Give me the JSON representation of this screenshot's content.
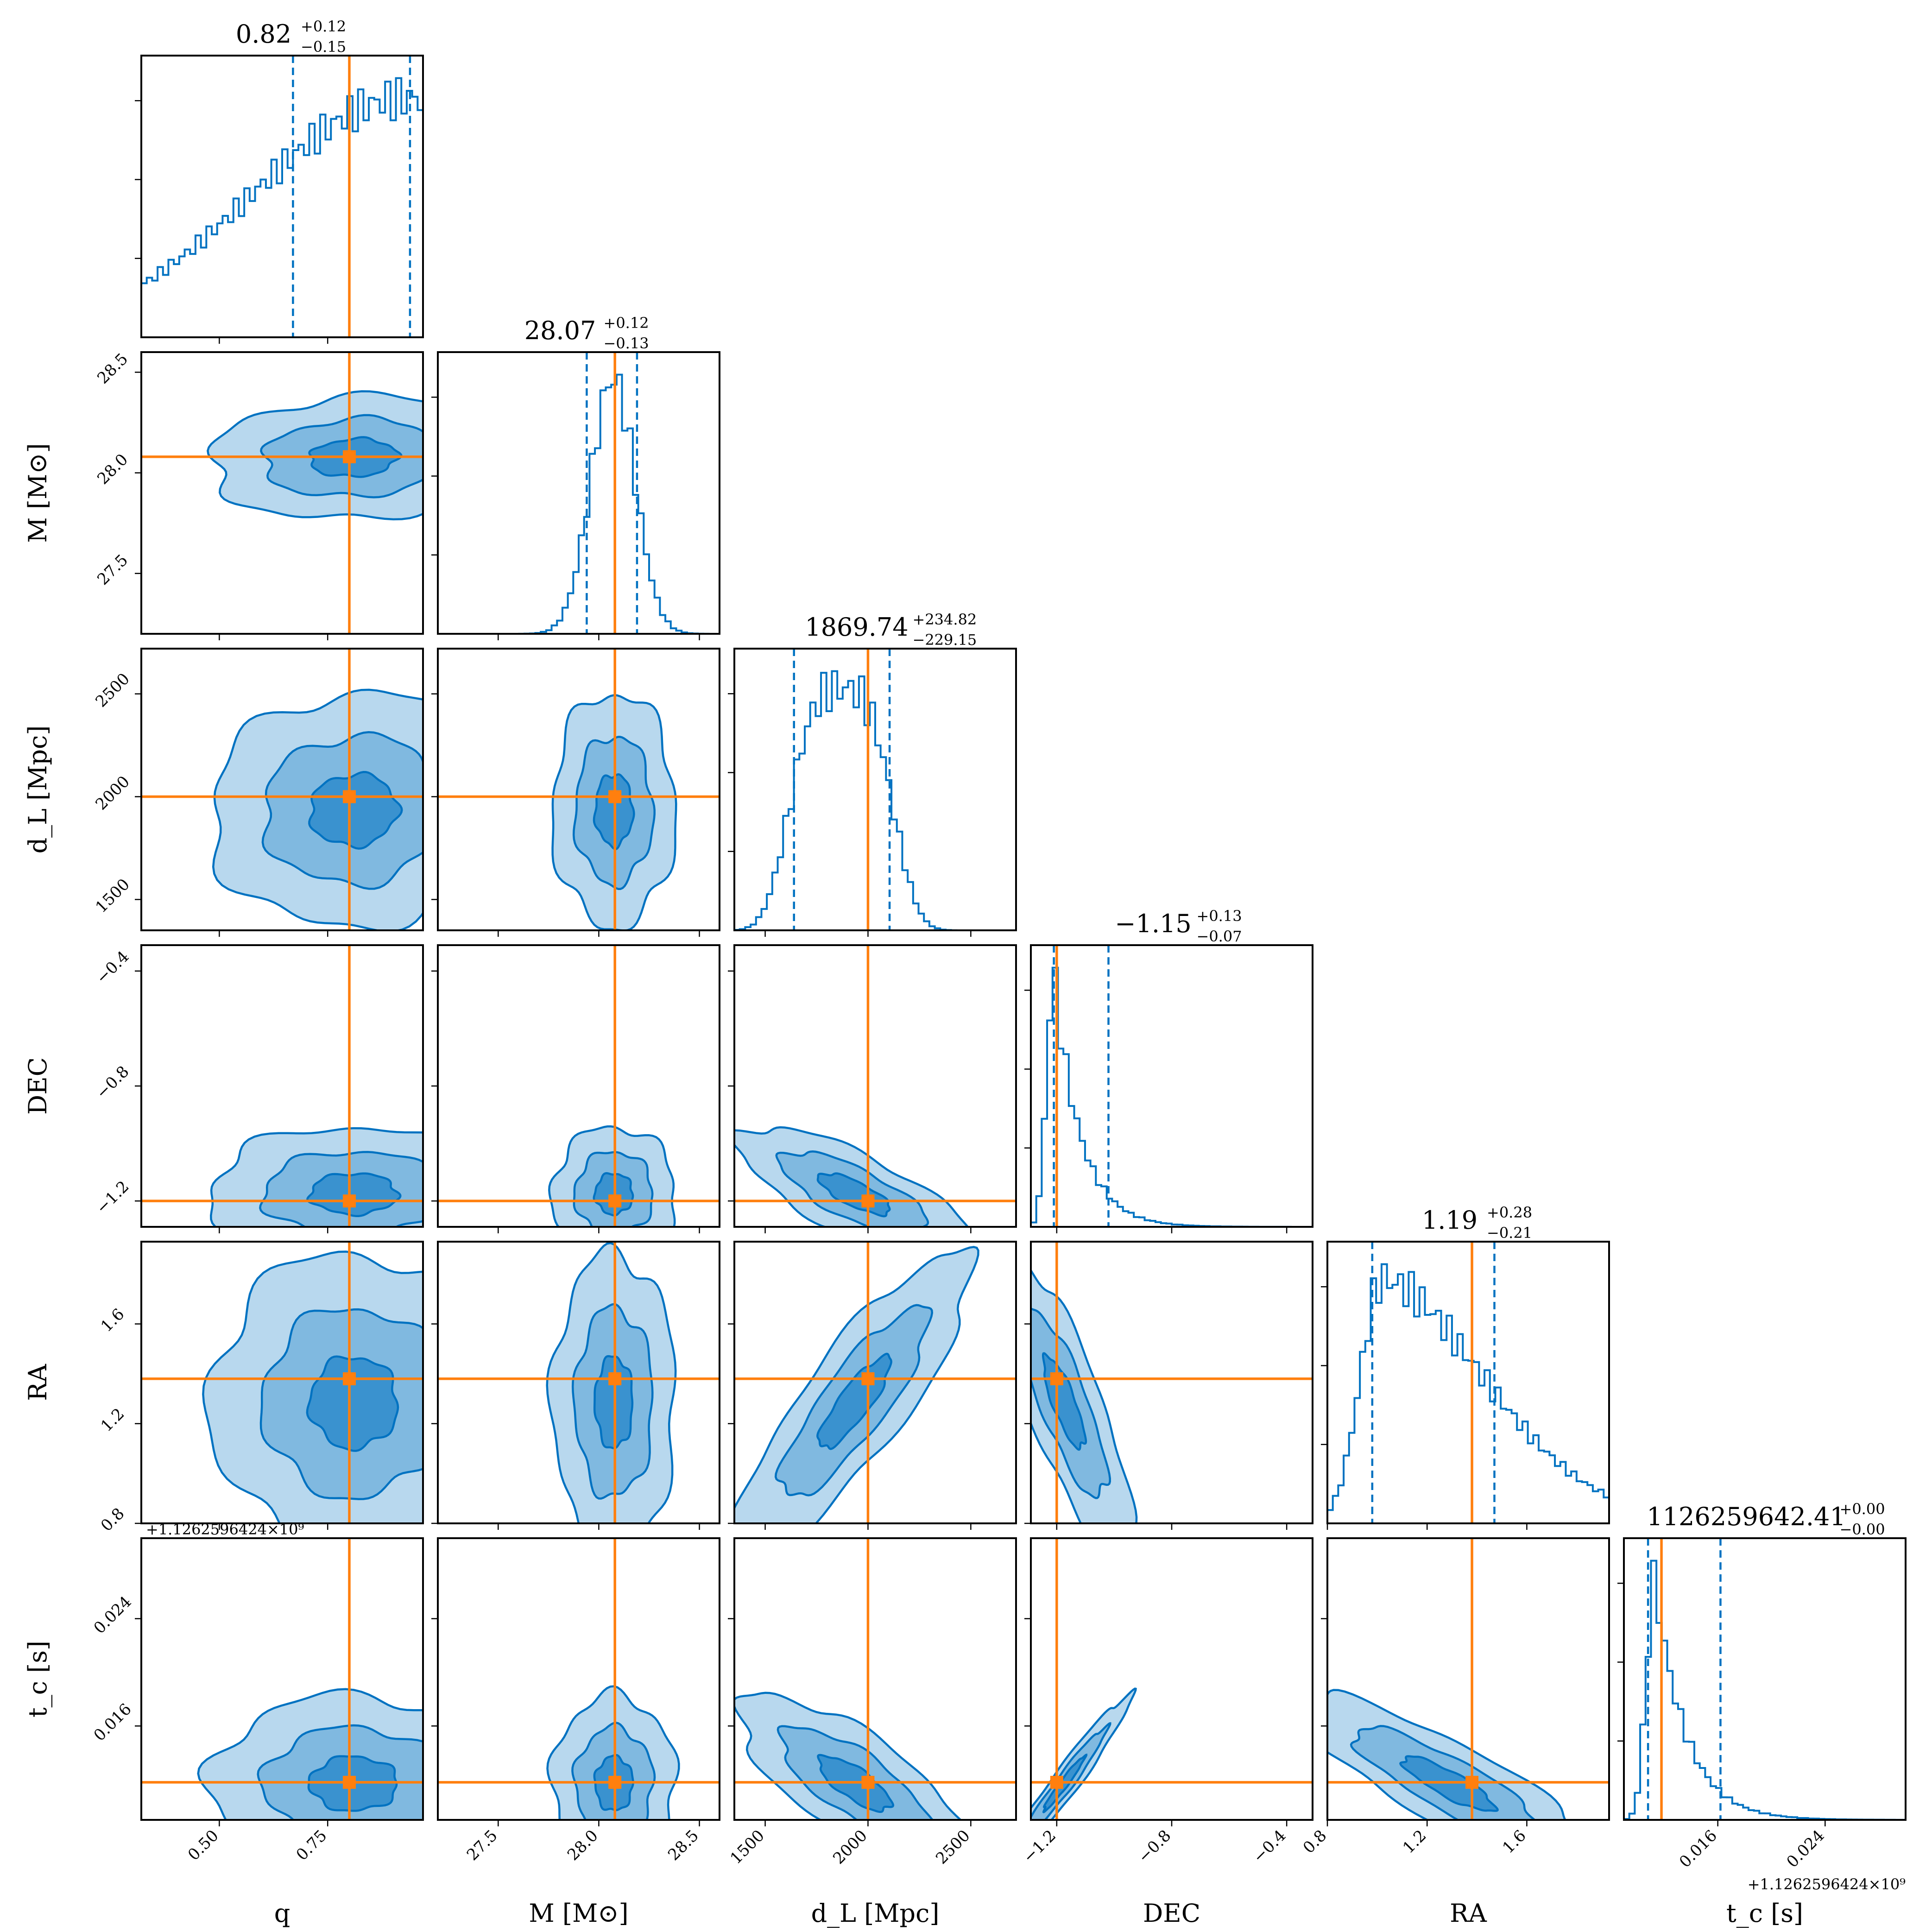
{
  "chart_data": {
    "type": "corner",
    "params": [
      {
        "key": "q",
        "label": "q",
        "range": [
          0.32,
          0.97
        ],
        "ticks": [
          0.5,
          0.75
        ],
        "tick_labels": [
          "0.50",
          "0.75"
        ],
        "truth": 0.8,
        "median": 0.82,
        "lo": 0.67,
        "hi": 0.94,
        "title": "0.82 +0.12 −0.15",
        "hist_shape": "rising",
        "hist_center": 0.93,
        "hist_width": 0.35
      },
      {
        "key": "M",
        "label": "M [M⊙]",
        "range": [
          27.2,
          28.6
        ],
        "ticks": [
          27.5,
          28.0,
          28.5
        ],
        "tick_labels": [
          "27.5",
          "28.0",
          "28.5"
        ],
        "truth": 28.08,
        "median": 28.07,
        "lo": 27.94,
        "hi": 28.19,
        "title": "28.07 +0.12 −0.13",
        "hist_shape": "gauss",
        "hist_center": 28.07,
        "hist_width": 0.11
      },
      {
        "key": "dL",
        "label": "d_L [Mpc]",
        "range": [
          1350,
          2720
        ],
        "ticks": [
          1500,
          2000,
          2500
        ],
        "tick_labels": [
          "1500",
          "2000",
          "2500"
        ],
        "truth": 2000,
        "median": 1869.74,
        "lo": 1640,
        "hi": 2105,
        "title": "1869.74 +234.82 −229.15",
        "hist_shape": "plateau",
        "hist_center": 1870,
        "hist_width": 230
      },
      {
        "key": "DEC",
        "label": "DEC",
        "range": [
          -1.29,
          -0.31
        ],
        "ticks": [
          -1.2,
          -0.8,
          -0.4
        ],
        "tick_labels": [
          "−1.2",
          "−0.8",
          "−0.4"
        ],
        "truth": -1.2,
        "median": -1.15,
        "lo": -1.21,
        "hi": -1.02,
        "title": "−1.15 +0.13 −0.07",
        "hist_shape": "skew",
        "hist_center": -1.21,
        "hist_width": 0.1
      },
      {
        "key": "RA",
        "label": "RA",
        "range": [
          0.8,
          1.93
        ],
        "ticks": [
          0.8,
          1.2,
          1.6
        ],
        "tick_labels": [
          "0.8",
          "1.2",
          "1.6"
        ],
        "truth": 1.38,
        "median": 1.19,
        "lo": 0.98,
        "hi": 1.47,
        "title": "1.19 +0.28 −0.21",
        "hist_shape": "decay",
        "hist_center": 1.02,
        "hist_width": 0.4
      },
      {
        "key": "tc",
        "label": "t_c [s]",
        "range": [
          0.009,
          0.03
        ],
        "ticks": [
          0.016,
          0.024
        ],
        "tick_labels": [
          "0.016",
          "0.024"
        ],
        "truth": 0.0118,
        "median": 0.0116,
        "lo": 0.0108,
        "hi": 0.0162,
        "title": "1126259642.41 +0.00 −0.00",
        "hist_shape": "skew",
        "hist_center": 0.0113,
        "hist_width": 0.0025,
        "offset_text": "+1.126259642 4×10⁹"
      }
    ],
    "axis_labels": {
      "x": [
        "q",
        "M [M⊙]",
        "d_L [Mpc]",
        "DEC",
        "RA",
        "t_c [s]"
      ],
      "y": [
        "",
        "M [M⊙]",
        "d_L [Mpc]",
        "DEC",
        "RA",
        "t_c [s]"
      ]
    },
    "titles": {
      "q": {
        "main": "0.82",
        "plus": "+0.12",
        "minus": "−0.15"
      },
      "M": {
        "main": "28.07",
        "plus": "+0.12",
        "minus": "−0.13"
      },
      "dL": {
        "main": "1869.74",
        "plus": "+234.82",
        "minus": "−229.15"
      },
      "DEC": {
        "main": "−1.15",
        "plus": "+0.13",
        "minus": "−0.07"
      },
      "RA": {
        "main": "1.19",
        "plus": "+0.28",
        "minus": "−0.21"
      },
      "tc": {
        "main": "1126259642.41",
        "plus": "+0.00",
        "minus": "−0.00"
      }
    },
    "offset_texts": {
      "tc_y": "+1.1262596424×10⁹",
      "tc_x": "+1.1262596424×10⁹"
    },
    "correlations": {
      "1,0": 0.1,
      "2,0": 0.05,
      "2,1": 0.0,
      "3,0": 0.0,
      "3,1": 0.0,
      "3,2": -0.75,
      "4,0": 0.0,
      "4,1": 0.0,
      "4,2": 0.85,
      "4,3": -0.8,
      "5,0": 0.0,
      "5,1": 0.0,
      "5,2": -0.75,
      "5,3": 0.97,
      "5,4": -0.85
    },
    "contour_levels": 3,
    "colors": {
      "contour": "#0072C1",
      "truth": "#FF7F0E",
      "hist": "#0072C1",
      "frame": "#000000"
    }
  }
}
